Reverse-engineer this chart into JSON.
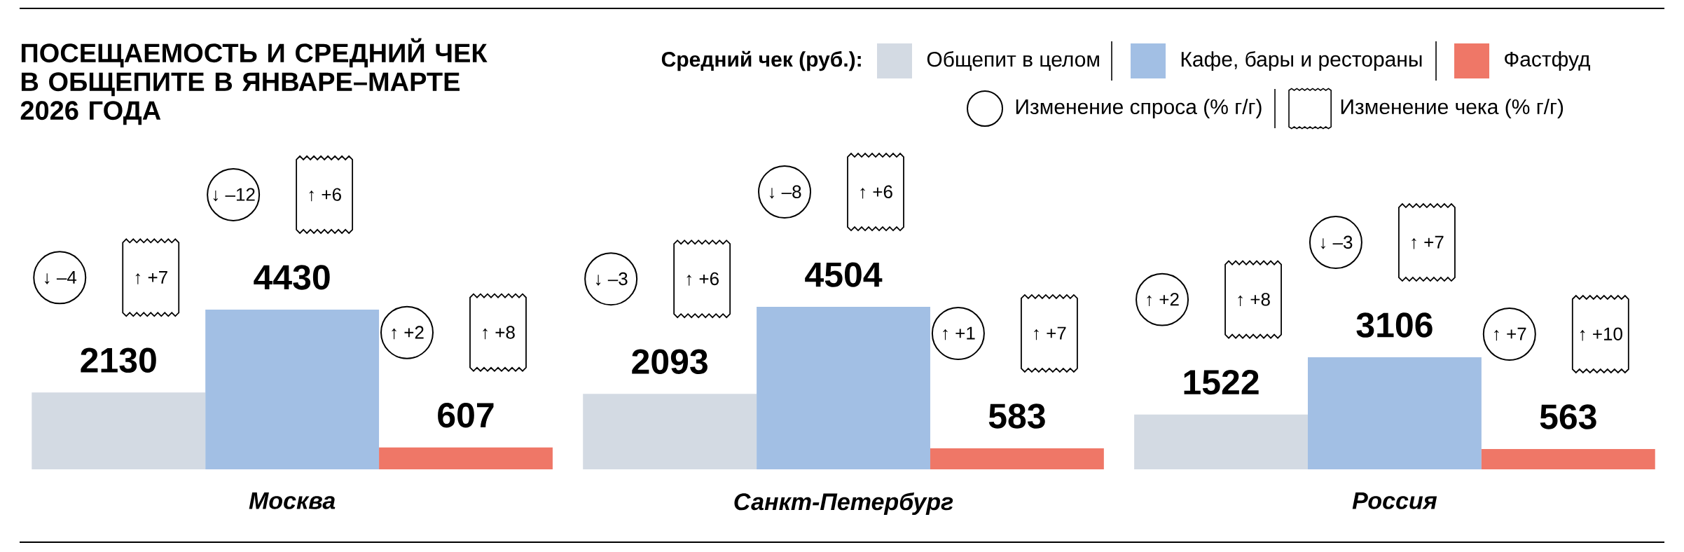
{
  "chart_data": {
    "type": "bar",
    "title": "ПОСЕЩАЕМОСТЬ И СРЕДНИЙ ЧЕК В ОБЩЕПИТЕ В ЯНВАРЕ–МАРТЕ 2026 ГОДА",
    "legend_title": "Средний чек (руб.):",
    "categories": [
      "Москва",
      "Санкт-Петербург",
      "Россия"
    ],
    "series": [
      {
        "name": "Общепит в целом",
        "color": "#d3dae3",
        "values": [
          2130,
          2093,
          1522
        ]
      },
      {
        "name": "Кафе, бары и рестораны",
        "color": "#a2bfe4",
        "values": [
          4430,
          4504,
          3106
        ]
      },
      {
        "name": "Фастфуд",
        "color": "#ef7767",
        "values": [
          607,
          583,
          563
        ]
      }
    ],
    "data_labels": true,
    "legend": "top right",
    "annotations": [
      "Изменение спроса (% г/г)",
      "Изменение чека (% г/г)",
      "↓ –4",
      "↑ +7",
      "↓ –12",
      "↑ +6",
      "↑ +2",
      "↑ +8",
      "↓ –3",
      "↑ +6",
      "↓ –8",
      "↑ +6",
      "↑ +1",
      "↑ +7",
      "↑ +2",
      "↑ +8",
      "↓ –3",
      "↑ +7",
      "↑ +7",
      "↑ +10"
    ]
  }
}
